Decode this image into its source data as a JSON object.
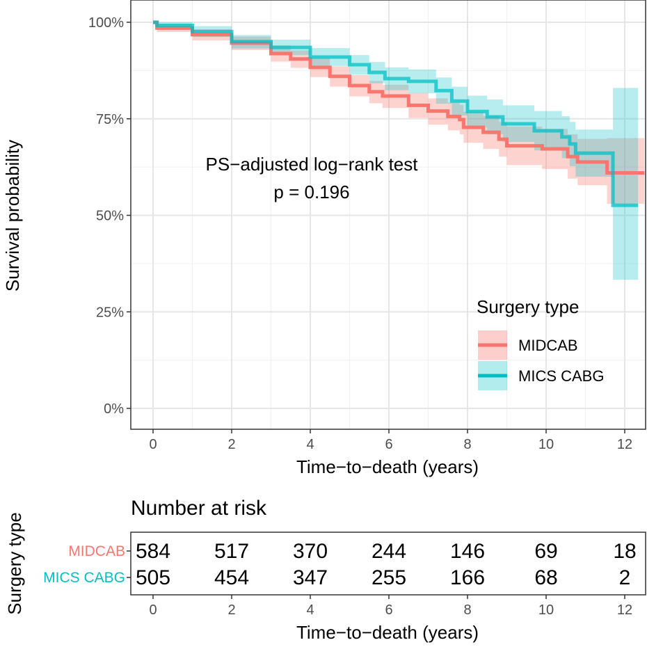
{
  "chart_data": {
    "type": "line",
    "subtype": "kaplan-meier",
    "title": "",
    "xlabel": "Time−to−death (years)",
    "ylabel": "Survival probability",
    "xlim": [
      -0.6,
      12.5
    ],
    "ylim": [
      0,
      1
    ],
    "x_ticks": [
      "0",
      "2",
      "4",
      "6",
      "8",
      "10",
      "12"
    ],
    "x_tick_values": [
      0,
      2,
      4,
      6,
      8,
      10,
      12
    ],
    "y_ticks": [
      "0%",
      "25%",
      "50%",
      "75%",
      "100%"
    ],
    "y_tick_values": [
      0,
      0.25,
      0.5,
      0.75,
      1
    ],
    "grid": true,
    "annotation": [
      "PS−adjusted log−rank test",
      "p = 0.196"
    ],
    "legend": {
      "title": "Surgery type",
      "placement": "bottom-right"
    },
    "series": [
      {
        "name": "MIDCAB",
        "color": "#F8766D",
        "points": [
          [
            0,
            1.0,
            0.995,
            1.0
          ],
          [
            0.1,
            0.985,
            0.975,
            0.995
          ],
          [
            1,
            0.968,
            0.953,
            0.982
          ],
          [
            2,
            0.946,
            0.928,
            0.963
          ],
          [
            3,
            0.919,
            0.898,
            0.94
          ],
          [
            3.5,
            0.905,
            0.882,
            0.927
          ],
          [
            4,
            0.883,
            0.858,
            0.907
          ],
          [
            4.5,
            0.86,
            0.833,
            0.886
          ],
          [
            5,
            0.836,
            0.808,
            0.863
          ],
          [
            5.5,
            0.82,
            0.79,
            0.848
          ],
          [
            5.84,
            0.809,
            0.778,
            0.838
          ],
          [
            6.5,
            0.785,
            0.752,
            0.817
          ],
          [
            7,
            0.77,
            0.735,
            0.803
          ],
          [
            7.5,
            0.756,
            0.72,
            0.792
          ],
          [
            7.8,
            0.748,
            0.71,
            0.786
          ],
          [
            7.9,
            0.728,
            0.688,
            0.768
          ],
          [
            8.4,
            0.715,
            0.672,
            0.757
          ],
          [
            8.8,
            0.697,
            0.652,
            0.742
          ],
          [
            9.0,
            0.68,
            0.63,
            0.73
          ],
          [
            9.9,
            0.672,
            0.62,
            0.724
          ],
          [
            10.55,
            0.652,
            0.595,
            0.71
          ],
          [
            10.8,
            0.638,
            0.578,
            0.698
          ],
          [
            11.55,
            0.61,
            0.53,
            0.7
          ],
          [
            12.5,
            0.61,
            0.53,
            0.7
          ]
        ]
      },
      {
        "name": "MICS CABG",
        "color": "#00BFC4",
        "points": [
          [
            0,
            1.0,
            0.995,
            1.0
          ],
          [
            0.1,
            0.992,
            0.983,
            1.0
          ],
          [
            1,
            0.976,
            0.962,
            0.99
          ],
          [
            2,
            0.95,
            0.932,
            0.967
          ],
          [
            3,
            0.935,
            0.915,
            0.955
          ],
          [
            4,
            0.91,
            0.887,
            0.933
          ],
          [
            5,
            0.89,
            0.864,
            0.915
          ],
          [
            5.5,
            0.87,
            0.842,
            0.897
          ],
          [
            5.9,
            0.854,
            0.824,
            0.883
          ],
          [
            6.5,
            0.847,
            0.816,
            0.878
          ],
          [
            7.2,
            0.823,
            0.789,
            0.857
          ],
          [
            7.6,
            0.796,
            0.758,
            0.833
          ],
          [
            8.0,
            0.769,
            0.727,
            0.81
          ],
          [
            8.5,
            0.755,
            0.71,
            0.8
          ],
          [
            8.9,
            0.737,
            0.69,
            0.785
          ],
          [
            9.7,
            0.719,
            0.668,
            0.77
          ],
          [
            10.4,
            0.703,
            0.648,
            0.757
          ],
          [
            10.6,
            0.685,
            0.627,
            0.742
          ],
          [
            10.75,
            0.661,
            0.6,
            0.722
          ],
          [
            11.7,
            0.526,
            0.333,
            0.83
          ],
          [
            12.34,
            0.526,
            0.333,
            0.83
          ]
        ]
      }
    ],
    "risk_table": {
      "title": "Number at risk",
      "ylabel": "Surgery type",
      "xlabel": "Time−to−death (years)",
      "times": [
        0,
        2,
        4,
        6,
        8,
        10,
        12
      ],
      "rows": [
        {
          "name": "MIDCAB",
          "color": "#F8766D",
          "values": [
            "584",
            "517",
            "370",
            "244",
            "146",
            "69",
            "18"
          ]
        },
        {
          "name": "MICS CABG",
          "color": "#00BFC4",
          "values": [
            "505",
            "454",
            "347",
            "255",
            "166",
            "68",
            "2"
          ]
        }
      ]
    }
  }
}
